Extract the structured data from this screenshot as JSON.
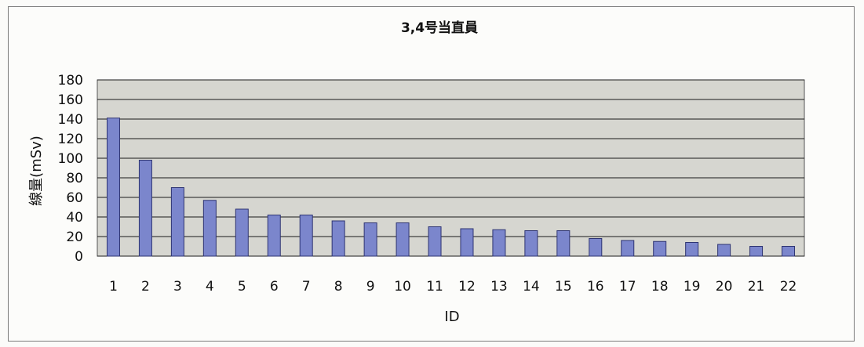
{
  "chart_data": {
    "type": "bar",
    "title": "3,4号当直員",
    "xlabel": "ID",
    "ylabel": "線量(mSv)",
    "categories": [
      "1",
      "2",
      "3",
      "4",
      "5",
      "6",
      "7",
      "8",
      "9",
      "10",
      "11",
      "12",
      "13",
      "14",
      "15",
      "16",
      "17",
      "18",
      "19",
      "20",
      "21",
      "22"
    ],
    "values": [
      141,
      98,
      70,
      57,
      48,
      42,
      42,
      36,
      34,
      34,
      30,
      28,
      27,
      26,
      26,
      18,
      16,
      15,
      14,
      12,
      10,
      10
    ],
    "ylim": [
      0,
      180
    ],
    "yticks": [
      "0",
      "20",
      "40",
      "60",
      "80",
      "100",
      "120",
      "140",
      "160",
      "180"
    ],
    "grid": true,
    "legend": "none",
    "colors": {
      "bar": "#7b86cc",
      "bar_stroke": "#2e3472",
      "plot_bg": "#d6d6d0",
      "grid": "#1a1a1a"
    }
  }
}
